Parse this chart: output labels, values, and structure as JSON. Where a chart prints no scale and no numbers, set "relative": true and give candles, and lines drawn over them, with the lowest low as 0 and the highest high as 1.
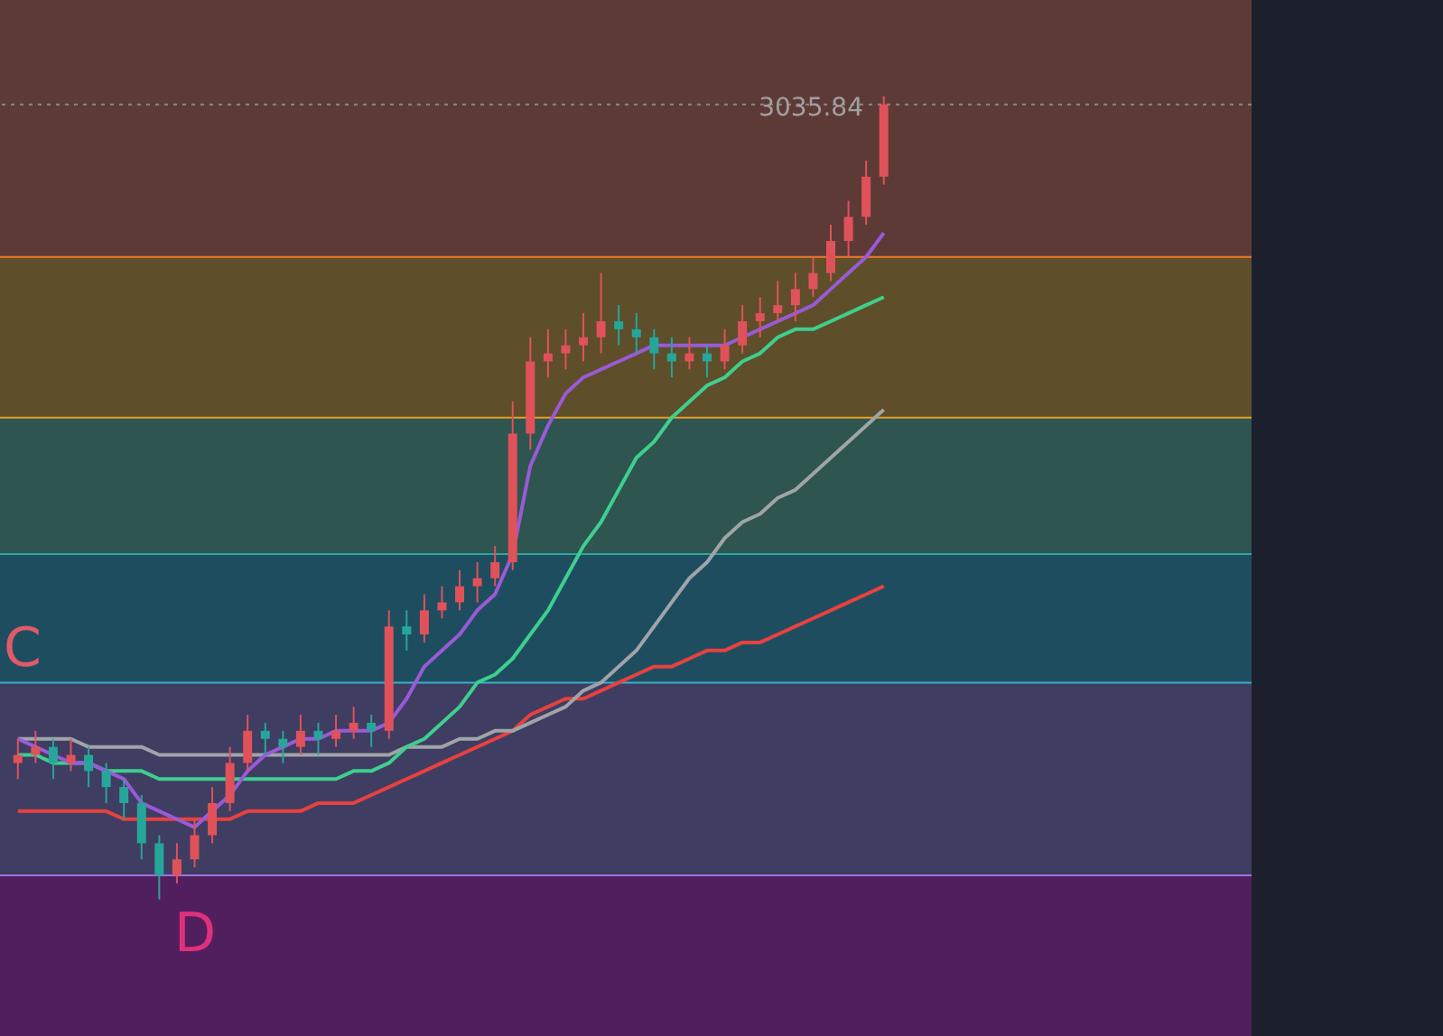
{
  "chart_data": {
    "type": "candlestick",
    "relative": true,
    "categories": [
      null,
      null,
      null,
      null,
      null,
      null,
      null,
      null,
      null,
      null,
      null,
      null,
      null,
      null,
      null,
      null,
      null,
      null,
      null,
      null,
      null,
      null,
      null,
      null,
      null,
      null,
      null,
      null,
      null,
      null,
      null,
      null,
      null,
      null,
      null,
      null,
      null,
      null,
      null,
      null,
      null,
      null,
      null,
      null,
      null,
      null,
      null,
      null,
      null,
      null
    ],
    "ohlc": [
      [
        0.17,
        0.2,
        0.15,
        0.18
      ],
      [
        0.18,
        0.21,
        0.17,
        0.19
      ],
      [
        0.19,
        0.2,
        0.15,
        0.17
      ],
      [
        0.17,
        0.2,
        0.16,
        0.18
      ],
      [
        0.18,
        0.19,
        0.14,
        0.16
      ],
      [
        0.16,
        0.17,
        0.12,
        0.14
      ],
      [
        0.14,
        0.15,
        0.1,
        0.12
      ],
      [
        0.12,
        0.13,
        0.05,
        0.07
      ],
      [
        0.07,
        0.08,
        0.0,
        0.03
      ],
      [
        0.03,
        0.07,
        0.02,
        0.05
      ],
      [
        0.05,
        0.1,
        0.04,
        0.08
      ],
      [
        0.08,
        0.14,
        0.07,
        0.12
      ],
      [
        0.12,
        0.19,
        0.11,
        0.17
      ],
      [
        0.17,
        0.23,
        0.16,
        0.21
      ],
      [
        0.21,
        0.22,
        0.18,
        0.2
      ],
      [
        0.2,
        0.21,
        0.17,
        0.19
      ],
      [
        0.19,
        0.23,
        0.18,
        0.21
      ],
      [
        0.21,
        0.22,
        0.18,
        0.2
      ],
      [
        0.2,
        0.23,
        0.19,
        0.21
      ],
      [
        0.21,
        0.24,
        0.2,
        0.22
      ],
      [
        0.22,
        0.23,
        0.19,
        0.21
      ],
      [
        0.21,
        0.36,
        0.2,
        0.34
      ],
      [
        0.34,
        0.36,
        0.31,
        0.33
      ],
      [
        0.33,
        0.38,
        0.32,
        0.36
      ],
      [
        0.36,
        0.39,
        0.35,
        0.37
      ],
      [
        0.37,
        0.41,
        0.36,
        0.39
      ],
      [
        0.39,
        0.42,
        0.37,
        0.4
      ],
      [
        0.4,
        0.44,
        0.39,
        0.42
      ],
      [
        0.42,
        0.62,
        0.41,
        0.58
      ],
      [
        0.58,
        0.7,
        0.56,
        0.67
      ],
      [
        0.67,
        0.71,
        0.65,
        0.68
      ],
      [
        0.68,
        0.71,
        0.66,
        0.69
      ],
      [
        0.69,
        0.73,
        0.67,
        0.7
      ],
      [
        0.7,
        0.78,
        0.68,
        0.72
      ],
      [
        0.72,
        0.74,
        0.69,
        0.71
      ],
      [
        0.71,
        0.73,
        0.68,
        0.7
      ],
      [
        0.7,
        0.71,
        0.66,
        0.68
      ],
      [
        0.68,
        0.7,
        0.65,
        0.67
      ],
      [
        0.67,
        0.7,
        0.66,
        0.68
      ],
      [
        0.68,
        0.69,
        0.65,
        0.67
      ],
      [
        0.67,
        0.71,
        0.66,
        0.69
      ],
      [
        0.69,
        0.74,
        0.68,
        0.72
      ],
      [
        0.72,
        0.75,
        0.7,
        0.73
      ],
      [
        0.73,
        0.77,
        0.72,
        0.74
      ],
      [
        0.74,
        0.78,
        0.72,
        0.76
      ],
      [
        0.76,
        0.8,
        0.75,
        0.78
      ],
      [
        0.78,
        0.84,
        0.77,
        0.82
      ],
      [
        0.82,
        0.87,
        0.8,
        0.85
      ],
      [
        0.85,
        0.92,
        0.84,
        0.9
      ],
      [
        0.9,
        1.0,
        0.89,
        0.99
      ]
    ],
    "colors": [
      "#e0525a",
      "#e0525a",
      "#26a69a",
      "#e0525a",
      "#26a69a",
      "#26a69a",
      "#26a69a",
      "#26a69a",
      "#26a69a",
      "#e0525a",
      "#e0525a",
      "#e0525a",
      "#e0525a",
      "#e0525a",
      "#26a69a",
      "#26a69a",
      "#e0525a",
      "#26a69a",
      "#e0525a",
      "#e0525a",
      "#26a69a",
      "#e0525a",
      "#26a69a",
      "#e0525a",
      "#e0525a",
      "#e0525a",
      "#e0525a",
      "#e0525a",
      "#e0525a",
      "#e0525a",
      "#e0525a",
      "#e0525a",
      "#e0525a",
      "#e0525a",
      "#26a69a",
      "#26a69a",
      "#26a69a",
      "#26a69a",
      "#e0525a",
      "#26a69a",
      "#e0525a",
      "#e0525a",
      "#e0525a",
      "#e0525a",
      "#e0525a",
      "#e0525a",
      "#e0525a",
      "#e0525a",
      "#e0525a",
      "#e0525a"
    ],
    "series": [
      {
        "type": "line",
        "color": "#e8413f",
        "values": [
          0.11,
          0.11,
          0.11,
          0.11,
          0.11,
          0.11,
          0.1,
          0.1,
          0.1,
          0.1,
          0.1,
          0.1,
          0.1,
          0.11,
          0.11,
          0.11,
          0.11,
          0.12,
          0.12,
          0.12,
          0.13,
          0.14,
          0.15,
          0.16,
          0.17,
          0.18,
          0.19,
          0.2,
          0.21,
          0.23,
          0.24,
          0.25,
          0.25,
          0.26,
          0.27,
          0.28,
          0.29,
          0.29,
          0.3,
          0.31,
          0.31,
          0.32,
          0.32,
          0.33,
          0.34,
          0.35,
          0.36,
          0.37,
          0.38,
          0.39
        ]
      },
      {
        "type": "line",
        "color": "#a0a4a8",
        "values": [
          0.2,
          0.2,
          0.2,
          0.2,
          0.19,
          0.19,
          0.19,
          0.19,
          0.18,
          0.18,
          0.18,
          0.18,
          0.18,
          0.18,
          0.18,
          0.18,
          0.18,
          0.18,
          0.18,
          0.18,
          0.18,
          0.18,
          0.19,
          0.19,
          0.19,
          0.2,
          0.2,
          0.21,
          0.21,
          0.22,
          0.23,
          0.24,
          0.26,
          0.27,
          0.29,
          0.31,
          0.34,
          0.37,
          0.4,
          0.42,
          0.45,
          0.47,
          0.48,
          0.5,
          0.51,
          0.53,
          0.55,
          0.57,
          0.59,
          0.61
        ]
      },
      {
        "type": "line",
        "color": "#3ecf8e",
        "values": [
          0.18,
          0.18,
          0.17,
          0.17,
          0.17,
          0.16,
          0.16,
          0.16,
          0.15,
          0.15,
          0.15,
          0.15,
          0.15,
          0.15,
          0.15,
          0.15,
          0.15,
          0.15,
          0.15,
          0.16,
          0.16,
          0.17,
          0.19,
          0.2,
          0.22,
          0.24,
          0.27,
          0.28,
          0.3,
          0.33,
          0.36,
          0.4,
          0.44,
          0.47,
          0.51,
          0.55,
          0.57,
          0.6,
          0.62,
          0.64,
          0.65,
          0.67,
          0.68,
          0.7,
          0.71,
          0.71,
          0.72,
          0.73,
          0.74,
          0.75
        ]
      },
      {
        "type": "line",
        "color": "#9a5ad8",
        "values": [
          0.2,
          0.19,
          0.18,
          0.17,
          0.17,
          0.16,
          0.15,
          0.12,
          0.11,
          0.1,
          0.09,
          0.11,
          0.13,
          0.16,
          0.18,
          0.19,
          0.2,
          0.2,
          0.21,
          0.21,
          0.21,
          0.22,
          0.25,
          0.29,
          0.31,
          0.33,
          0.36,
          0.38,
          0.43,
          0.54,
          0.59,
          0.63,
          0.65,
          0.66,
          0.67,
          0.68,
          0.69,
          0.69,
          0.69,
          0.69,
          0.69,
          0.7,
          0.71,
          0.72,
          0.73,
          0.74,
          0.76,
          0.78,
          0.8,
          0.83
        ]
      }
    ],
    "bands": [
      {
        "axis": "y",
        "from": 0.8,
        "to": 1.12,
        "color": "#5e3a36"
      },
      {
        "axis": "y",
        "from": 0.6,
        "to": 0.8,
        "color": "#5e4e2a"
      },
      {
        "axis": "y",
        "from": 0.43,
        "to": 0.6,
        "color": "#2e5550"
      },
      {
        "axis": "y",
        "from": 0.27,
        "to": 0.43,
        "color": "#1f4d60"
      },
      {
        "axis": "y",
        "from": 0.03,
        "to": 0.27,
        "color": "#3f3d62"
      },
      {
        "axis": "y",
        "from": -0.17,
        "to": 0.03,
        "color": "#521f5e"
      }
    ],
    "ref_lines": [
      {
        "axis": "y",
        "value": 0.8,
        "color": "#f07a2a",
        "line_style": "solid"
      },
      {
        "axis": "y",
        "value": 0.6,
        "color": "#e8a020",
        "line_style": "solid"
      },
      {
        "axis": "y",
        "value": 0.43,
        "color": "#2aa8a0",
        "line_style": "solid"
      },
      {
        "axis": "y",
        "value": 0.27,
        "color": "#3ab0c8",
        "line_style": "solid"
      },
      {
        "axis": "y",
        "value": 0.03,
        "color": "#a070e0",
        "line_style": "solid"
      },
      {
        "axis": "y",
        "value": 0.99,
        "color": "#8a8a8a",
        "line_style": "dotted"
      }
    ],
    "annotations": [
      "C",
      "D",
      "3035.84"
    ]
  }
}
